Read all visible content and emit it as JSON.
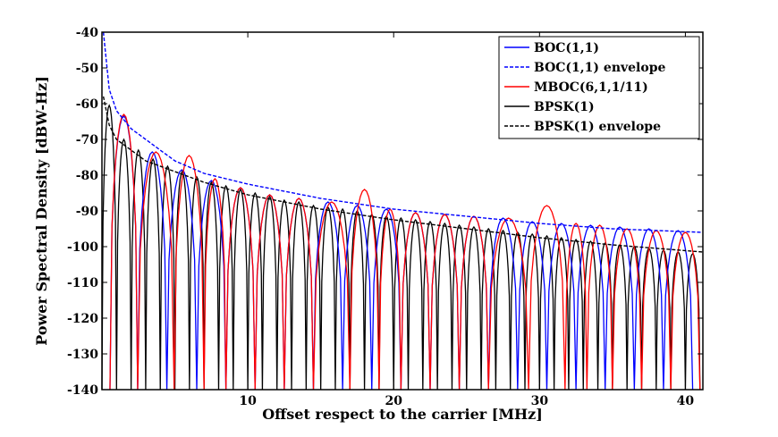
{
  "chart_data": {
    "type": "line",
    "title": "",
    "xlabel": "Offset respect to the carrier [MHz]",
    "ylabel": "Power Spectral Density [dBW-Hz]",
    "xlim": [
      0,
      41.2
    ],
    "ylim": [
      -140,
      -40
    ],
    "xticks": [
      10,
      20,
      30,
      40
    ],
    "yticks": [
      -40,
      -50,
      -60,
      -70,
      -80,
      -90,
      -100,
      -110,
      -120,
      -130,
      -140
    ],
    "grid": false,
    "legend_position": "top-right",
    "series": [
      {
        "name": "BOC(1,1)",
        "color": "#0000ff",
        "style": "solid",
        "peaks": [
          [
            1.5,
            -63.5
          ],
          [
            3.4,
            -73.5
          ],
          [
            5.5,
            -78.5
          ],
          [
            7.5,
            -81.5
          ],
          [
            9.5,
            -83.5
          ],
          [
            11.5,
            -85.5
          ],
          [
            13.5,
            -86.5
          ],
          [
            15.5,
            -87.5
          ],
          [
            17.5,
            -88.5
          ],
          [
            19.5,
            -89.5
          ],
          [
            21.5,
            -90.5
          ],
          [
            23.5,
            -91.0
          ],
          [
            25.5,
            -91.5
          ],
          [
            27.5,
            -92.0
          ],
          [
            29.5,
            -93.0
          ],
          [
            31.5,
            -93.5
          ],
          [
            33.5,
            -94.0
          ],
          [
            35.5,
            -94.5
          ],
          [
            37.5,
            -95.0
          ],
          [
            39.5,
            -95.5
          ]
        ]
      },
      {
        "name": "BOC(1,1) envelope",
        "color": "#0000ff",
        "style": "dashed",
        "x": [
          0.1,
          0.5,
          1,
          2,
          3,
          5,
          7,
          10,
          15,
          20,
          25,
          30,
          35,
          41.2
        ],
        "y": [
          -40,
          -56,
          -62,
          -67,
          -70,
          -76,
          -79.5,
          -82.5,
          -86.5,
          -89.5,
          -91.5,
          -93.5,
          -95,
          -96
        ]
      },
      {
        "name": "MBOC(6,1,1/11)",
        "color": "#ff0000",
        "style": "solid",
        "peaks": [
          [
            1.5,
            -63
          ],
          [
            3.4,
            -73.5
          ],
          [
            6.5,
            -74.5
          ],
          [
            7.5,
            -81
          ],
          [
            9.5,
            -83.5
          ],
          [
            11.5,
            -85.5
          ],
          [
            13.5,
            -86.5
          ],
          [
            15.5,
            -87.5
          ],
          [
            18.5,
            -84
          ],
          [
            19.5,
            -89.5
          ],
          [
            21.5,
            -90.5
          ],
          [
            23.5,
            -91
          ],
          [
            25.5,
            -91.5
          ],
          [
            27.5,
            -92
          ],
          [
            31,
            -88.5
          ],
          [
            32.5,
            -93.5
          ],
          [
            34,
            -94
          ],
          [
            36,
            -95
          ],
          [
            38,
            -95.5
          ],
          [
            40,
            -96
          ]
        ]
      },
      {
        "name": "BPSK(1)",
        "color": "#000000",
        "style": "solid",
        "peaks": [
          [
            0.5,
            -60.5
          ],
          [
            1.5,
            -70
          ],
          [
            2.5,
            -73
          ],
          [
            3.5,
            -75.5
          ],
          [
            4.5,
            -77.5
          ],
          [
            5.5,
            -79
          ],
          [
            6.5,
            -80.5
          ],
          [
            7.5,
            -82
          ],
          [
            8.5,
            -83
          ],
          [
            9.5,
            -84
          ],
          [
            10.5,
            -85
          ],
          [
            11.5,
            -86
          ],
          [
            12.5,
            -87
          ],
          [
            13.5,
            -87.5
          ],
          [
            14.5,
            -88.5
          ],
          [
            15.5,
            -89
          ],
          [
            16.5,
            -89.5
          ],
          [
            17.5,
            -90
          ],
          [
            18.5,
            -91
          ],
          [
            19.5,
            -91.5
          ],
          [
            20.5,
            -92
          ],
          [
            21.5,
            -92.5
          ],
          [
            22.5,
            -93
          ],
          [
            23.5,
            -93.5
          ],
          [
            24.5,
            -94
          ],
          [
            25.5,
            -94.5
          ],
          [
            26.5,
            -95
          ],
          [
            27.5,
            -95.5
          ],
          [
            28.5,
            -96
          ],
          [
            29.5,
            -96.5
          ],
          [
            30.5,
            -97
          ],
          [
            31.5,
            -97.5
          ],
          [
            32.5,
            -98
          ],
          [
            33.5,
            -98.5
          ],
          [
            34.5,
            -99
          ],
          [
            35.5,
            -99.5
          ],
          [
            36.5,
            -100
          ],
          [
            37.5,
            -100.5
          ],
          [
            38.5,
            -101
          ],
          [
            39.5,
            -101.5
          ],
          [
            40.5,
            -102
          ]
        ]
      },
      {
        "name": "BPSK(1) envelope",
        "color": "#000000",
        "style": "dashed",
        "x": [
          0.1,
          0.5,
          1,
          2,
          3,
          5,
          7,
          10,
          15,
          20,
          25,
          30,
          35,
          41.2
        ],
        "y": [
          -58,
          -66,
          -70,
          -73,
          -76,
          -79,
          -82,
          -85.5,
          -89.5,
          -92.5,
          -95,
          -97.5,
          -99.5,
          -101.5
        ]
      }
    ]
  }
}
